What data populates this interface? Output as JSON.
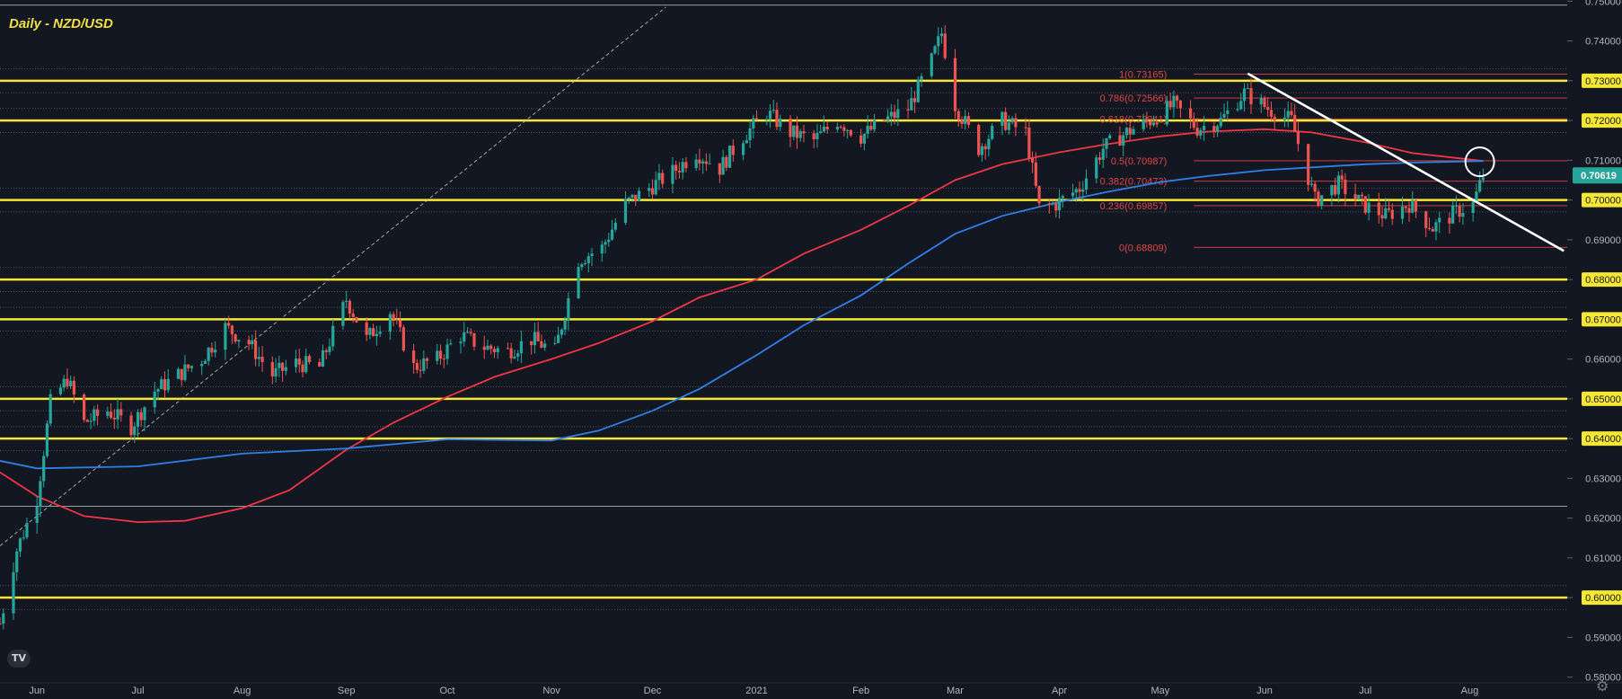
{
  "title": "Daily - NZD/USD",
  "current_price": "0.70619",
  "colors": {
    "background": "#131722",
    "bull": "#26a69a",
    "bear": "#ef5350",
    "sr_line": "#f5e733",
    "ma_red": "#f23645",
    "ma_blue": "#2f7fe8",
    "fib": "#e04545",
    "axis_text": "#b2b5be",
    "price_badge": "#26a69a"
  },
  "icons": {
    "logo": "tradingview-logo-icon",
    "settings": "gear-icon",
    "logo_text": "TV"
  },
  "chart_data": {
    "type": "candlestick",
    "title": "Daily - NZD/USD",
    "ylim": [
      0.5745,
      0.7503
    ],
    "x_range": [
      "2020-05-21",
      "2021-08-30"
    ],
    "y_ticks": [
      "0.58000",
      "0.59000",
      "0.60000",
      "0.61000",
      "0.62000",
      "0.63000",
      "0.64000",
      "0.65000",
      "0.66000",
      "0.67000",
      "0.68000",
      "0.69000",
      "0.70000",
      "0.71000",
      "0.72000",
      "0.73000",
      "0.74000",
      "0.75000"
    ],
    "y_tick_values": [
      0.58,
      0.59,
      0.6,
      0.61,
      0.62,
      0.63,
      0.64,
      0.65,
      0.66,
      0.67,
      0.68,
      0.69,
      0.7,
      0.71,
      0.72,
      0.73,
      0.74,
      0.75
    ],
    "x_ticks": [
      {
        "label": "Jun",
        "date": "2020-06-01"
      },
      {
        "label": "Jul",
        "date": "2020-07-01"
      },
      {
        "label": "Aug",
        "date": "2020-08-01"
      },
      {
        "label": "Sep",
        "date": "2020-09-01"
      },
      {
        "label": "Oct",
        "date": "2020-10-01"
      },
      {
        "label": "Nov",
        "date": "2020-11-01"
      },
      {
        "label": "Dec",
        "date": "2020-12-01"
      },
      {
        "label": "2021",
        "date": "2021-01-01"
      },
      {
        "label": "Feb",
        "date": "2021-02-01"
      },
      {
        "label": "Mar",
        "date": "2021-03-01"
      },
      {
        "label": "Apr",
        "date": "2021-04-01"
      },
      {
        "label": "May",
        "date": "2021-05-01"
      },
      {
        "label": "Jun",
        "date": "2021-06-01"
      },
      {
        "label": "Jul",
        "date": "2021-07-01"
      },
      {
        "label": "Aug",
        "date": "2021-08-01"
      }
    ],
    "support_resistance_levels": [
      0.6,
      0.64,
      0.65,
      0.67,
      0.68,
      0.7,
      0.72,
      0.73
    ],
    "fib_retracement": {
      "start_date": "2021-05-27",
      "end_date": "2021-08-30",
      "levels": [
        {
          "label": "1(0.73165)",
          "value": 0.73165
        },
        {
          "label": "0.786(0.72566)",
          "value": 0.72566
        },
        {
          "label": "0.618(0.72041)",
          "value": 0.72041
        },
        {
          "label": "0.5(0.70987)",
          "value": 0.70987
        },
        {
          "label": "0.382(0.70473)",
          "value": 0.70473
        },
        {
          "label": "0.236(0.69857)",
          "value": 0.69857
        },
        {
          "label": "0(0.68809)",
          "value": 0.68809
        }
      ]
    },
    "trendline": [
      {
        "date": "2021-05-27",
        "value": 0.7318
      },
      {
        "date": "2021-08-29",
        "value": 0.6872
      }
    ],
    "highlight_circle": {
      "date": "2021-08-04",
      "value": 0.7096
    },
    "last_price": 0.70619,
    "series": [
      {
        "kind": "moving_average",
        "color": "#f23645",
        "points": [
          [
            "2020-05-21",
            0.6315
          ],
          [
            "2020-06-01",
            0.6255
          ],
          [
            "2020-06-15",
            0.6205
          ],
          [
            "2020-07-01",
            0.619
          ],
          [
            "2020-07-15",
            0.6193
          ],
          [
            "2020-08-01",
            0.6225
          ],
          [
            "2020-08-15",
            0.627
          ],
          [
            "2020-09-01",
            0.6372
          ],
          [
            "2020-09-15",
            0.644
          ],
          [
            "2020-10-01",
            0.6505
          ],
          [
            "2020-10-15",
            0.6555
          ],
          [
            "2020-11-01",
            0.66
          ],
          [
            "2020-11-15",
            0.664
          ],
          [
            "2020-12-01",
            0.6695
          ],
          [
            "2020-12-15",
            0.6755
          ],
          [
            "2021-01-01",
            0.68
          ],
          [
            "2021-01-15",
            0.6865
          ],
          [
            "2021-02-01",
            0.6925
          ],
          [
            "2021-02-15",
            0.6985
          ],
          [
            "2021-03-01",
            0.705
          ],
          [
            "2021-03-15",
            0.709
          ],
          [
            "2021-04-01",
            0.712
          ],
          [
            "2021-04-15",
            0.714
          ],
          [
            "2021-05-01",
            0.716
          ],
          [
            "2021-05-15",
            0.7172
          ],
          [
            "2021-06-01",
            0.7178
          ],
          [
            "2021-06-15",
            0.717
          ],
          [
            "2021-07-01",
            0.7145
          ],
          [
            "2021-07-15",
            0.7118
          ],
          [
            "2021-08-05",
            0.7098
          ]
        ]
      },
      {
        "kind": "moving_average",
        "color": "#2f7fe8",
        "points": [
          [
            "2020-05-21",
            0.6344
          ],
          [
            "2020-06-01",
            0.6325
          ],
          [
            "2020-07-01",
            0.633
          ],
          [
            "2020-08-01",
            0.6362
          ],
          [
            "2020-09-01",
            0.6375
          ],
          [
            "2020-10-01",
            0.6398
          ],
          [
            "2020-11-01",
            0.6395
          ],
          [
            "2020-11-15",
            0.642
          ],
          [
            "2020-12-01",
            0.647
          ],
          [
            "2020-12-15",
            0.6525
          ],
          [
            "2021-01-01",
            0.661
          ],
          [
            "2021-01-15",
            0.6685
          ],
          [
            "2021-02-01",
            0.676
          ],
          [
            "2021-02-15",
            0.684
          ],
          [
            "2021-03-01",
            0.6915
          ],
          [
            "2021-03-15",
            0.696
          ],
          [
            "2021-04-01",
            0.6995
          ],
          [
            "2021-04-15",
            0.702
          ],
          [
            "2021-05-01",
            0.7045
          ],
          [
            "2021-05-15",
            0.706
          ],
          [
            "2021-06-01",
            0.7075
          ],
          [
            "2021-06-15",
            0.7082
          ],
          [
            "2021-07-01",
            0.709
          ],
          [
            "2021-07-15",
            0.7094
          ],
          [
            "2021-08-05",
            0.7098
          ]
        ]
      },
      {
        "kind": "price_path",
        "points": [
          [
            "2020-05-21",
            0.5935
          ],
          [
            "2020-05-26",
            0.612
          ],
          [
            "2020-06-01",
            0.625
          ],
          [
            "2020-06-05",
            0.649
          ],
          [
            "2020-06-10",
            0.655
          ],
          [
            "2020-06-15",
            0.644
          ],
          [
            "2020-06-22",
            0.647
          ],
          [
            "2020-06-29",
            0.643
          ],
          [
            "2020-07-06",
            0.652
          ],
          [
            "2020-07-13",
            0.656
          ],
          [
            "2020-07-20",
            0.66
          ],
          [
            "2020-07-27",
            0.668
          ],
          [
            "2020-08-03",
            0.664
          ],
          [
            "2020-08-10",
            0.656
          ],
          [
            "2020-08-17",
            0.659
          ],
          [
            "2020-08-24",
            0.658
          ],
          [
            "2020-09-01",
            0.675
          ],
          [
            "2020-09-07",
            0.665
          ],
          [
            "2020-09-14",
            0.672
          ],
          [
            "2020-09-21",
            0.658
          ],
          [
            "2020-09-28",
            0.66
          ],
          [
            "2020-10-05",
            0.666
          ],
          [
            "2020-10-12",
            0.663
          ],
          [
            "2020-10-19",
            0.662
          ],
          [
            "2020-10-26",
            0.665
          ],
          [
            "2020-11-02",
            0.662
          ],
          [
            "2020-11-09",
            0.685
          ],
          [
            "2020-11-16",
            0.688
          ],
          [
            "2020-11-23",
            0.699
          ],
          [
            "2020-11-30",
            0.703
          ],
          [
            "2020-12-07",
            0.707
          ],
          [
            "2020-12-14",
            0.712
          ],
          [
            "2020-12-21",
            0.708
          ],
          [
            "2020-12-28",
            0.716
          ],
          [
            "2021-01-04",
            0.722
          ],
          [
            "2021-01-11",
            0.717
          ],
          [
            "2021-01-18",
            0.715
          ],
          [
            "2021-01-25",
            0.72
          ],
          [
            "2021-02-01",
            0.716
          ],
          [
            "2021-02-08",
            0.72
          ],
          [
            "2021-02-15",
            0.723
          ],
          [
            "2021-02-22",
            0.735
          ],
          [
            "2021-02-25",
            0.742
          ],
          [
            "2021-03-01",
            0.724
          ],
          [
            "2021-03-08",
            0.713
          ],
          [
            "2021-03-15",
            0.72
          ],
          [
            "2021-03-22",
            0.717
          ],
          [
            "2021-03-26",
            0.698
          ],
          [
            "2021-03-31",
            0.699
          ],
          [
            "2021-04-07",
            0.703
          ],
          [
            "2021-04-14",
            0.713
          ],
          [
            "2021-04-21",
            0.717
          ],
          [
            "2021-04-28",
            0.72
          ],
          [
            "2021-05-05",
            0.724
          ],
          [
            "2021-05-12",
            0.718
          ],
          [
            "2021-05-19",
            0.72
          ],
          [
            "2021-05-26",
            0.727
          ],
          [
            "2021-06-02",
            0.723
          ],
          [
            "2021-06-09",
            0.72
          ],
          [
            "2021-06-16",
            0.7
          ],
          [
            "2021-06-23",
            0.704
          ],
          [
            "2021-06-30",
            0.699
          ],
          [
            "2021-07-07",
            0.696
          ],
          [
            "2021-07-14",
            0.699
          ],
          [
            "2021-07-21",
            0.693
          ],
          [
            "2021-07-28",
            0.697
          ],
          [
            "2021-08-02",
            0.699
          ],
          [
            "2021-08-05",
            0.7062
          ]
        ]
      }
    ]
  }
}
